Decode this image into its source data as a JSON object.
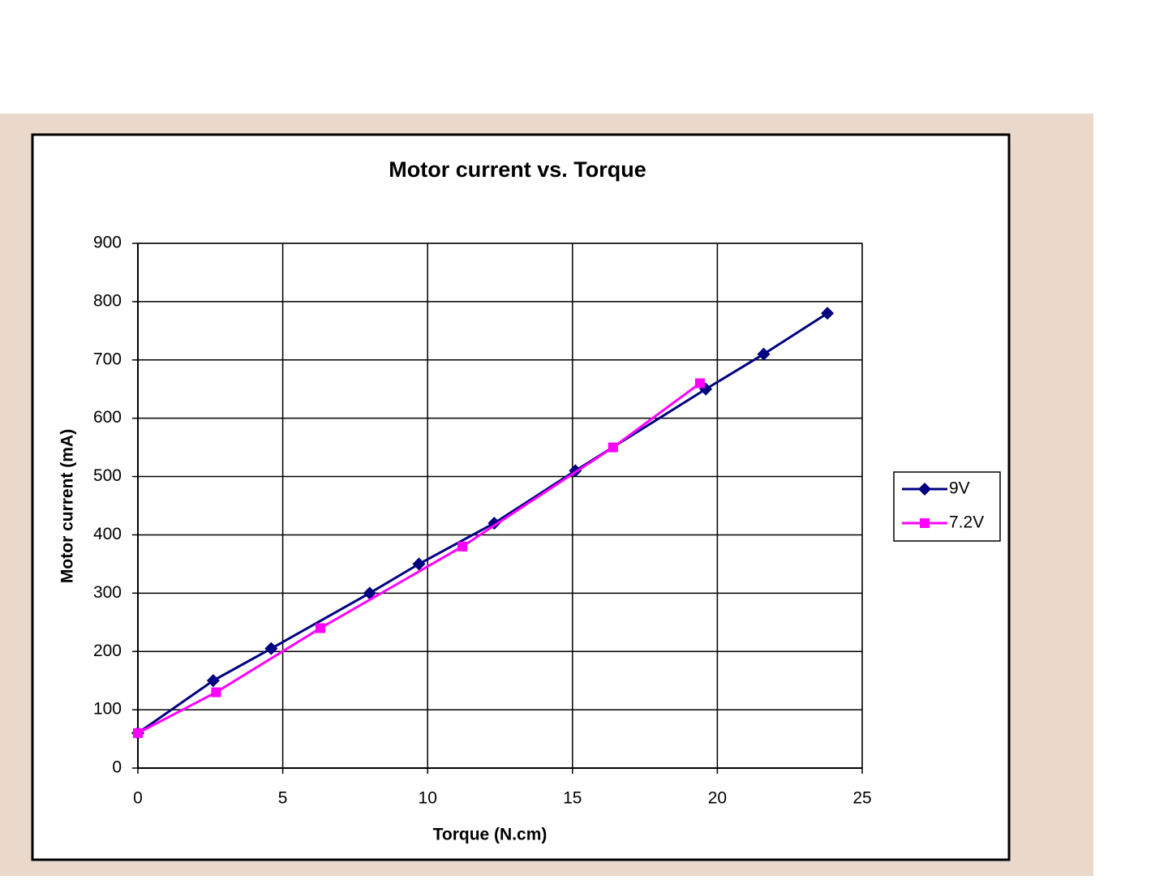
{
  "chart_data": {
    "type": "line",
    "title": "Motor current vs. Torque",
    "x_label": "Torque (N.cm)",
    "y_label": "Motor current (mA)",
    "series": [
      {
        "name": "9V",
        "color": "#000080",
        "marker": "diamond",
        "x": [
          0,
          2.6,
          4.6,
          8,
          9.7,
          12.3,
          15.1,
          19.6,
          21.6,
          23.8
        ],
        "values": [
          60,
          150,
          205,
          300,
          350,
          420,
          510,
          650,
          710,
          780
        ]
      },
      {
        "name": "7.2V",
        "color": "#ff00ff",
        "marker": "square",
        "x": [
          0,
          2.7,
          6.3,
          11.2,
          16.4,
          19.4
        ],
        "values": [
          60,
          130,
          240,
          380,
          550,
          660
        ]
      }
    ],
    "xlim": [
      0,
      25
    ],
    "xticks": [
      0,
      5,
      10,
      15,
      20,
      25
    ],
    "ylim": [
      0,
      900
    ],
    "yticks": [
      0,
      100,
      200,
      300,
      400,
      500,
      600,
      700,
      800,
      900
    ],
    "grid": true,
    "legend": "right"
  }
}
